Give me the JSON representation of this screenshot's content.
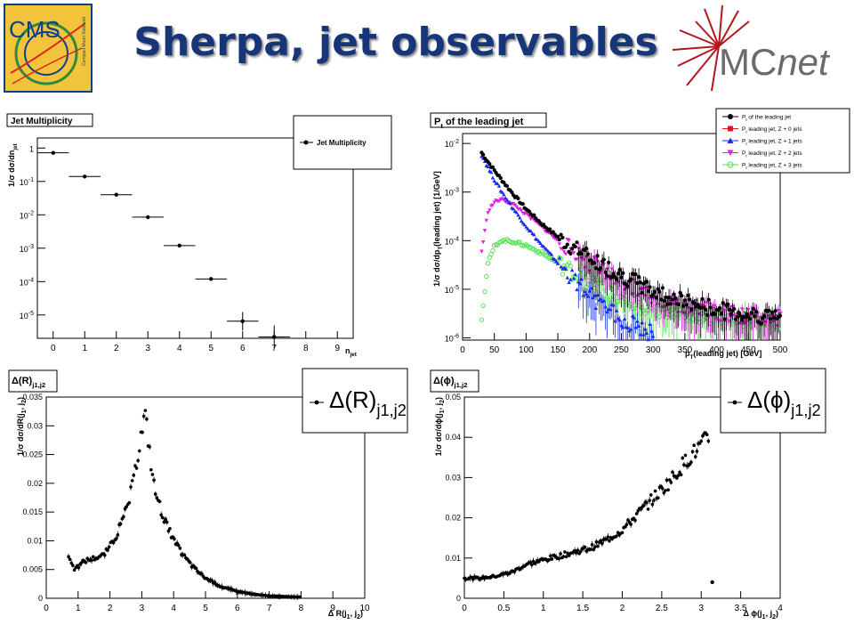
{
  "title": "Sherpa, jet observables",
  "logos": {
    "cms": {
      "text": "CMS",
      "small_text": "Compact Muon Solenoid",
      "colors": {
        "bg": "#f2c43c",
        "frame": "#0f3e8c",
        "green": "#2e8b3c",
        "red": "#d9241c"
      }
    },
    "mcnet": {
      "text_mc": "MC",
      "text_net": "net",
      "colors": {
        "text": "#6b6b6b",
        "burst": "#b4161b"
      }
    }
  },
  "chart_data": [
    {
      "id": "jet-multiplicity",
      "type": "scatter",
      "title": "Jet Multiplicity",
      "xlabel": "n",
      "xlabel_sub": "jet",
      "ylabel": "1/σ dσ/dn",
      "ylabel_sub": "jet",
      "xlim": [
        -0.5,
        9.5
      ],
      "ylim": [
        2e-06,
        2
      ],
      "yscale": "log",
      "x_ticks": [
        "0",
        "1",
        "2",
        "3",
        "4",
        "5",
        "6",
        "7",
        "8",
        "9"
      ],
      "y_ticks": [
        {
          "mantissa": "1",
          "exp": ""
        },
        {
          "mantissa": "10",
          "exp": "-1"
        },
        {
          "mantissa": "10",
          "exp": "-2"
        },
        {
          "mantissa": "10",
          "exp": "-3"
        },
        {
          "mantissa": "10",
          "exp": "-4"
        },
        {
          "mantissa": "10",
          "exp": "-5"
        }
      ],
      "legend": {
        "entries": [
          {
            "label": "Jet Multiplicity",
            "color": "#000000"
          }
        ],
        "placement": "top-right"
      },
      "series": [
        {
          "name": "Jet Multiplicity",
          "color": "#000000",
          "x": [
            0,
            1,
            2,
            3,
            4,
            5,
            6,
            7
          ],
          "values": [
            0.72,
            0.14,
            0.04,
            0.0085,
            0.0012,
            0.00012,
            6.5e-06,
            2.2e-06
          ],
          "yerr_factor": [
            1,
            1,
            1,
            1,
            1,
            1,
            1.9,
            2.2
          ]
        }
      ]
    },
    {
      "id": "leading-jet-pt",
      "type": "scatter",
      "title": "P",
      "title_sub": "t",
      "title_rest": " of the leading jet",
      "xlabel": "p",
      "xlabel_sub": "T",
      "xlabel_rest": "(leading jet) [GeV]",
      "ylabel": "1/σ dσ/dp",
      "ylabel_sub": "T",
      "ylabel_rest": "(leading jet) [1/GeV]",
      "xlim": [
        0,
        500
      ],
      "ylim": [
        9e-07,
        0.016
      ],
      "yscale": "log",
      "x_ticks": [
        "0",
        "50",
        "100",
        "150",
        "200",
        "250",
        "300",
        "350",
        "400",
        "450",
        "500"
      ],
      "y_ticks": [
        {
          "mantissa": "10",
          "exp": "-2"
        },
        {
          "mantissa": "10",
          "exp": "-3"
        },
        {
          "mantissa": "10",
          "exp": "-4"
        },
        {
          "mantissa": "10",
          "exp": "-5"
        },
        {
          "mantissa": "10",
          "exp": "-6"
        }
      ],
      "legend": {
        "placement": "top-right",
        "entries": [
          {
            "label_main": "P",
            "label_sub": "t",
            "label_rest": " of the leading jet",
            "color": "#000000",
            "marker": "circle"
          },
          {
            "label_main": "P",
            "label_sub": "t",
            "label_rest": " leading jet, Z + 0 jets",
            "color": "#e8141c",
            "marker": "square"
          },
          {
            "label_main": "P",
            "label_sub": "t",
            "label_rest": " leading jet, Z + 1 jets",
            "color": "#1a2ee8",
            "marker": "triangle-up"
          },
          {
            "label_main": "P",
            "label_sub": "t",
            "label_rest": " leading jet, Z + 2 jets",
            "color": "#e81ae8",
            "marker": "triangle-down"
          },
          {
            "label_main": "P",
            "label_sub": "t",
            "label_rest": " leading jet, Z + 3 jets",
            "color": "#4ee04e",
            "marker": "open-circle"
          }
        ]
      },
      "series": [
        {
          "name": "P_t of the leading jet",
          "color": "#000000",
          "x": [
            30,
            40,
            50,
            60,
            70,
            80,
            100,
            125,
            150,
            175,
            200,
            225,
            250,
            300,
            350,
            400,
            450,
            500
          ],
          "values": [
            0.0065,
            0.0042,
            0.0028,
            0.0019,
            0.0013,
            0.0009,
            0.00045,
            0.00022,
            0.00012,
            7e-05,
            4.5e-05,
            2.9e-05,
            2e-05,
            9e-06,
            5.5e-06,
            3.8e-06,
            3e-06,
            2.8e-06
          ]
        },
        {
          "name": "Z + 1 jets",
          "color": "#1a2ee8",
          "x": [
            30,
            40,
            50,
            60,
            70,
            80,
            100,
            125,
            150,
            175,
            200,
            225,
            250,
            300
          ],
          "values": [
            0.0058,
            0.0032,
            0.0018,
            0.0011,
            0.0007,
            0.00045,
            0.0002,
            8e-05,
            3.5e-05,
            1.6e-05,
            8e-06,
            4e-06,
            2.5e-06,
            1.2e-06
          ]
        },
        {
          "name": "Z + 2 jets",
          "color": "#e81ae8",
          "x": [
            30,
            40,
            50,
            60,
            70,
            80,
            100,
            125,
            150,
            175,
            200,
            250,
            300,
            350,
            400,
            450,
            500
          ],
          "values": [
            6e-05,
            0.0004,
            0.00062,
            0.0007,
            0.00065,
            0.00055,
            0.00035,
            0.00019,
            0.0001,
            6e-05,
            3.5e-05,
            1.5e-05,
            7e-06,
            4.5e-06,
            3.3e-06,
            2.7e-06,
            2.5e-06
          ]
        },
        {
          "name": "Z + 3 jets",
          "color": "#4ee04e",
          "x": [
            30,
            40,
            50,
            60,
            70,
            80,
            100,
            125,
            150,
            175,
            200,
            250,
            300,
            350,
            400,
            450,
            500
          ],
          "values": [
            2.5e-06,
            3.5e-05,
            7.5e-05,
            0.0001,
            0.0001,
            9.5e-05,
            8e-05,
            5.5e-05,
            3.5e-05,
            2.2e-05,
            1.4e-05,
            6.5e-06,
            3.8e-06,
            3e-06,
            2.6e-06,
            2.5e-06,
            2.4e-06
          ]
        }
      ]
    },
    {
      "id": "delta-r",
      "type": "scatter",
      "title": "Δ(R)",
      "title_sub": "j1,j2",
      "legend_label": "Δ(R)",
      "legend_sub": "j1,j2",
      "xlabel": "Δ R(j",
      "xlabel_rest": ", j",
      "xlabel_end": ")",
      "ylabel": "1/σ dσ/dR(j",
      "ylabel_rest": ", j",
      "ylabel_end": ")",
      "xlim": [
        0,
        10
      ],
      "ylim": [
        0,
        0.035
      ],
      "yscale": "linear",
      "x_ticks": [
        "0",
        "1",
        "2",
        "3",
        "4",
        "5",
        "6",
        "7",
        "8",
        "9",
        "10"
      ],
      "y_ticks": [
        "0",
        "0.005",
        "0.01",
        "0.015",
        "0.02",
        "0.025",
        "0.03",
        "0.035"
      ],
      "series": [
        {
          "name": "Δ(R) j1,j2",
          "color": "#000000",
          "x": [
            0.7,
            0.8,
            0.9,
            1.0,
            1.2,
            1.5,
            1.8,
            2.0,
            2.2,
            2.4,
            2.6,
            2.8,
            2.9,
            3.0,
            3.1,
            3.2,
            3.3,
            3.4,
            3.6,
            3.8,
            4.0,
            4.3,
            4.6,
            5.0,
            5.5,
            6.0,
            6.5,
            7.0,
            7.5,
            8.0
          ],
          "values": [
            0.0075,
            0.006,
            0.005,
            0.0055,
            0.0065,
            0.007,
            0.0075,
            0.009,
            0.011,
            0.0135,
            0.017,
            0.022,
            0.026,
            0.029,
            0.032,
            0.028,
            0.023,
            0.019,
            0.0155,
            0.0125,
            0.01,
            0.0075,
            0.0055,
            0.0035,
            0.002,
            0.0012,
            0.0007,
            0.0004,
            0.0003,
            0.0002
          ]
        }
      ]
    },
    {
      "id": "delta-phi",
      "type": "scatter",
      "title": "Δ(ϕ)",
      "title_sub": "j1,j2",
      "legend_label": "Δ(ϕ)",
      "legend_sub": "j1,j2",
      "xlabel": "Δ ϕ(j",
      "xlabel_rest": ", j",
      "xlabel_end": ")",
      "ylabel": "1/σ dσ/dϕ(j",
      "ylabel_rest": ", j",
      "ylabel_end": ")",
      "xlim": [
        0,
        4
      ],
      "ylim": [
        0,
        0.05
      ],
      "yscale": "linear",
      "x_ticks": [
        "0",
        "0.5",
        "1",
        "1.5",
        "2",
        "2.5",
        "3",
        "3.5",
        "4"
      ],
      "y_ticks": [
        "0",
        "0.01",
        "0.02",
        "0.03",
        "0.04",
        "0.05"
      ],
      "series": [
        {
          "name": "Δ(ϕ) j1,j2",
          "color": "#000000",
          "x": [
            0.0,
            0.2,
            0.4,
            0.6,
            0.8,
            1.0,
            1.2,
            1.4,
            1.6,
            1.8,
            2.0,
            2.2,
            2.4,
            2.6,
            2.8,
            3.0,
            3.1,
            3.14
          ],
          "values": [
            0.005,
            0.005,
            0.0055,
            0.0065,
            0.0085,
            0.0095,
            0.0105,
            0.0115,
            0.0125,
            0.0145,
            0.017,
            0.021,
            0.025,
            0.029,
            0.034,
            0.038,
            0.04,
            0.004
          ]
        }
      ]
    }
  ]
}
